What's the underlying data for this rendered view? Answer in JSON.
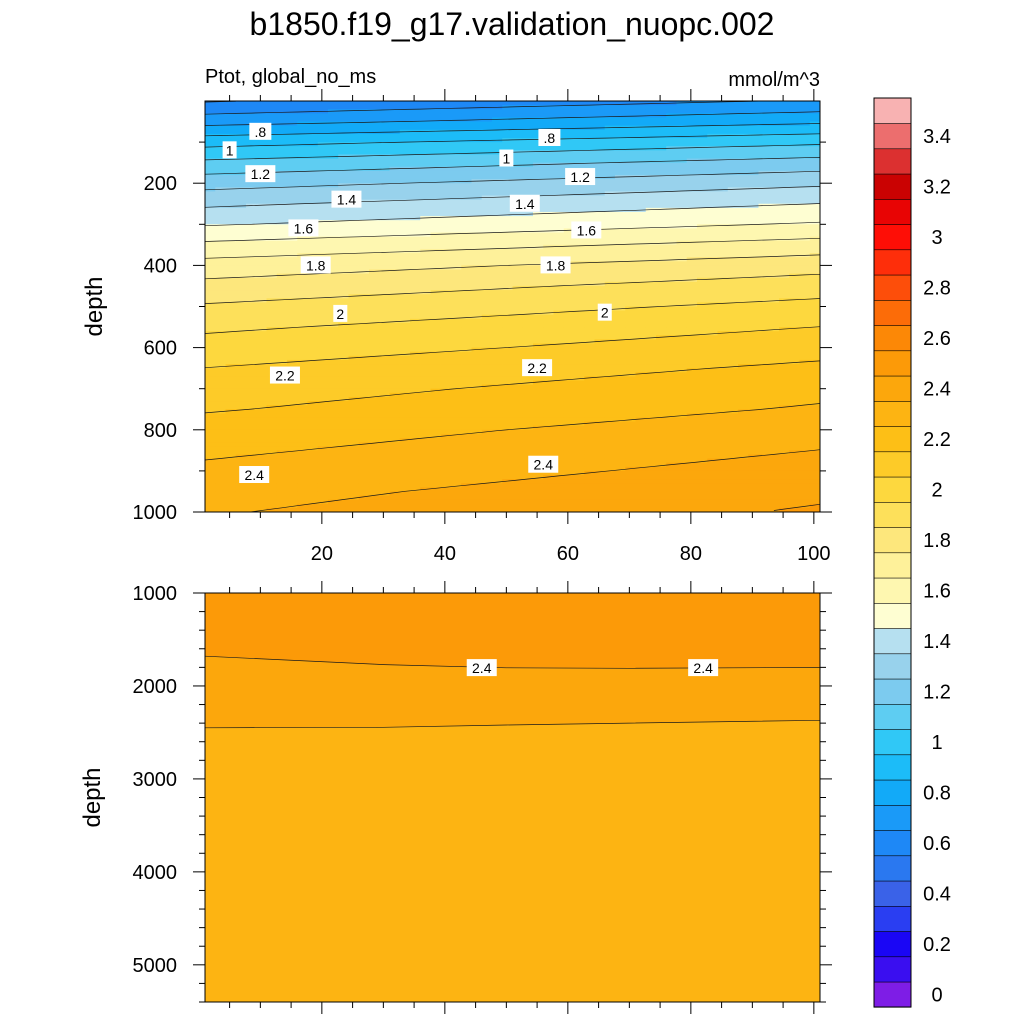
{
  "figure": {
    "title": "b1850.f19_g17.validation_nuopc.002",
    "left_string": "Ptot, global_no_ms",
    "right_string": "mmol/m^3"
  },
  "colorbar": {
    "levels": [
      0,
      0.1,
      0.2,
      0.3,
      0.4,
      0.5,
      0.6,
      0.7,
      0.8,
      0.9,
      1.0,
      1.1,
      1.2,
      1.3,
      1.4,
      1.5,
      1.6,
      1.7,
      1.8,
      1.9,
      2.0,
      2.1,
      2.2,
      2.3,
      2.4,
      2.5,
      2.6,
      2.7,
      2.8,
      2.9,
      3.0,
      3.1,
      3.2,
      3.3,
      3.4,
      3.5
    ],
    "colors": [
      "#7e1de6",
      "#3a0ef0",
      "#1a06f5",
      "#2a3ef2",
      "#3a62e8",
      "#2a78f0",
      "#1e88f6",
      "#1a9af8",
      "#12aaf8",
      "#1cbcf8",
      "#30c8f6",
      "#5ecdf2",
      "#7ccbef",
      "#98d2ec",
      "#b6e0f0",
      "#fefed2",
      "#fef7b0",
      "#fef19a",
      "#fde77c",
      "#fde05a",
      "#fdd83e",
      "#fdcb28",
      "#fdbf16",
      "#fdb412",
      "#fca70c",
      "#fc9a08",
      "#fc8806",
      "#fc6c08",
      "#fd4e0a",
      "#fe2e0a",
      "#fe0e06",
      "#e80404",
      "#ca0202",
      "#dc3030",
      "#ec6e6e",
      "#f8b2b2"
    ],
    "tick_labels": [
      "0",
      "0.2",
      "0.4",
      "0.6",
      "0.8",
      "1",
      "1.2",
      "1.4",
      "1.6",
      "1.8",
      "2",
      "2.2",
      "2.4",
      "2.6",
      "2.8",
      "3",
      "3.2",
      "3.4"
    ]
  },
  "chart_data": [
    {
      "type": "contour",
      "name": "upper",
      "ylabel": "depth",
      "xlim": [
        1,
        101
      ],
      "ylim": [
        1000,
        0
      ],
      "x_ticks": [
        "20",
        "40",
        "60",
        "80",
        "100"
      ],
      "x_tick_values": [
        20,
        40,
        60,
        80,
        100
      ],
      "y_ticks": [
        "200",
        "400",
        "600",
        "800",
        "1000"
      ],
      "y_tick_values": [
        200,
        400,
        600,
        800,
        1000
      ],
      "profile_depth": [
        0,
        50,
        100,
        150,
        200,
        250,
        300,
        350,
        400,
        450,
        500,
        550,
        600,
        650,
        700,
        750,
        800,
        850,
        900,
        950,
        1000
      ],
      "profile_value": [
        0.65,
        0.82,
        1.02,
        1.18,
        1.32,
        1.44,
        1.55,
        1.68,
        1.8,
        1.89,
        1.97,
        2.04,
        2.1,
        2.16,
        2.21,
        2.25,
        2.3,
        2.34,
        2.38,
        2.42,
        2.45
      ],
      "gradient_x": 0.0012,
      "contour_labels": [
        {
          "text": ".8",
          "x": 10,
          "y": 75
        },
        {
          "text": ".8",
          "x": 57,
          "y": 90
        },
        {
          "text": "1",
          "x": 5,
          "y": 120
        },
        {
          "text": "1",
          "x": 50,
          "y": 140
        },
        {
          "text": "1.2",
          "x": 10,
          "y": 178
        },
        {
          "text": "1.2",
          "x": 62,
          "y": 185
        },
        {
          "text": "1.4",
          "x": 24,
          "y": 240
        },
        {
          "text": "1.4",
          "x": 53,
          "y": 250
        },
        {
          "text": "1.6",
          "x": 17,
          "y": 310
        },
        {
          "text": "1.6",
          "x": 63,
          "y": 315
        },
        {
          "text": "1.8",
          "x": 19,
          "y": 400
        },
        {
          "text": "1.8",
          "x": 58,
          "y": 400
        },
        {
          "text": "2",
          "x": 23,
          "y": 518
        },
        {
          "text": "2",
          "x": 66,
          "y": 515
        },
        {
          "text": "2.2",
          "x": 14,
          "y": 668
        },
        {
          "text": "2.2",
          "x": 55,
          "y": 650
        },
        {
          "text": "2.4",
          "x": 9,
          "y": 910
        },
        {
          "text": "2.4",
          "x": 56,
          "y": 885
        }
      ]
    },
    {
      "type": "contour",
      "name": "lower",
      "ylabel": "depth",
      "xlim": [
        1,
        101
      ],
      "ylim": [
        5400,
        1000
      ],
      "x_ticks": [],
      "x_tick_values": [
        20,
        40,
        60,
        80,
        100
      ],
      "y_ticks": [
        "1000",
        "2000",
        "3000",
        "4000",
        "5000"
      ],
      "y_tick_values": [
        1000,
        2000,
        3000,
        4000,
        5000
      ],
      "band_colors": [
        "#fc9a08",
        "#fca70c",
        "#fdb412"
      ],
      "contour_lines": [
        {
          "x": [
            1,
            30,
            50,
            70,
            101
          ],
          "depth": [
            1680,
            1770,
            1805,
            1810,
            1800
          ]
        },
        {
          "x": [
            1,
            30,
            50,
            70,
            101
          ],
          "depth": [
            2450,
            2445,
            2420,
            2400,
            2370
          ]
        }
      ],
      "contour_labels": [
        {
          "text": "2.4",
          "x": 46,
          "y": 1808
        },
        {
          "text": "2.4",
          "x": 82,
          "y": 1808
        }
      ]
    }
  ]
}
